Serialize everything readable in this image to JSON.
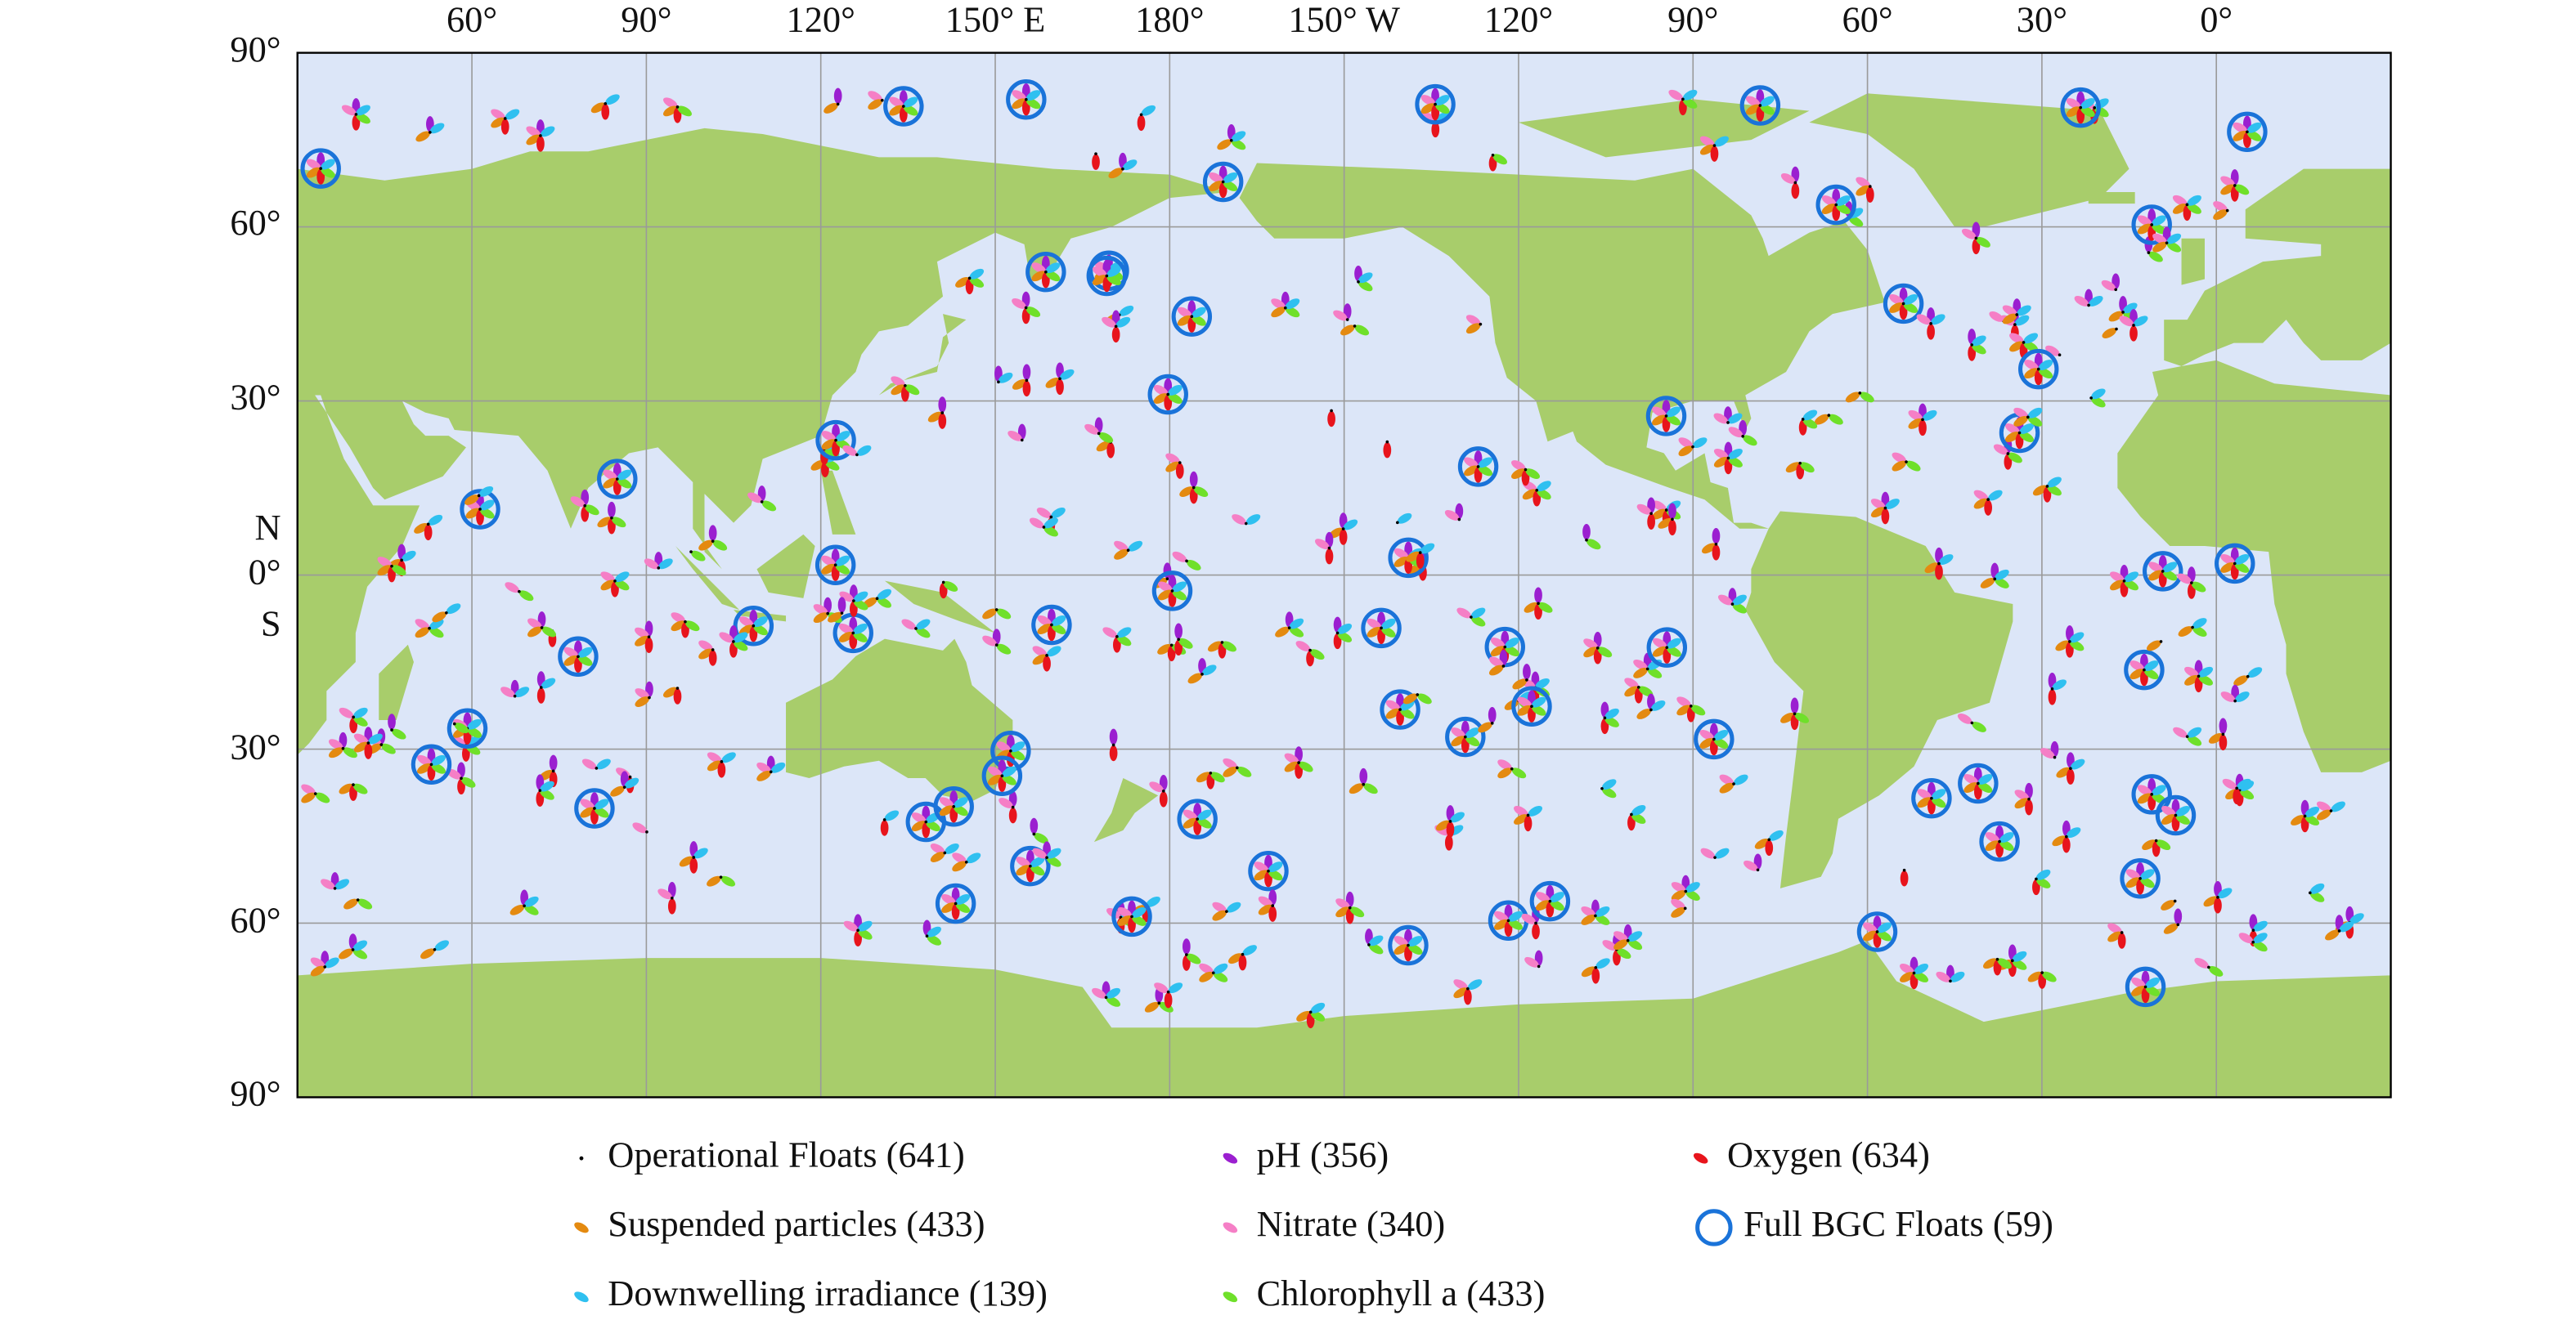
{
  "map": {
    "top_labels": [
      "60°",
      "90°",
      "120°",
      "150° E",
      "180°",
      "150° W",
      "120°",
      "90°",
      "60°",
      "30°",
      "0°"
    ],
    "left_labels": [
      "90°",
      "60°",
      "30°",
      "N",
      "0°",
      "S",
      "30°",
      "60°",
      "90°"
    ],
    "legend": [
      "Operational Floats (641)",
      "pH (356)",
      "Oxygen (634)",
      "Suspended particles (433)",
      "Nitrate (340)",
      "Full BGC Floats (59)",
      "Downwelling irradiance (139)",
      "Chlorophyll a (433)"
    ]
  }
}
